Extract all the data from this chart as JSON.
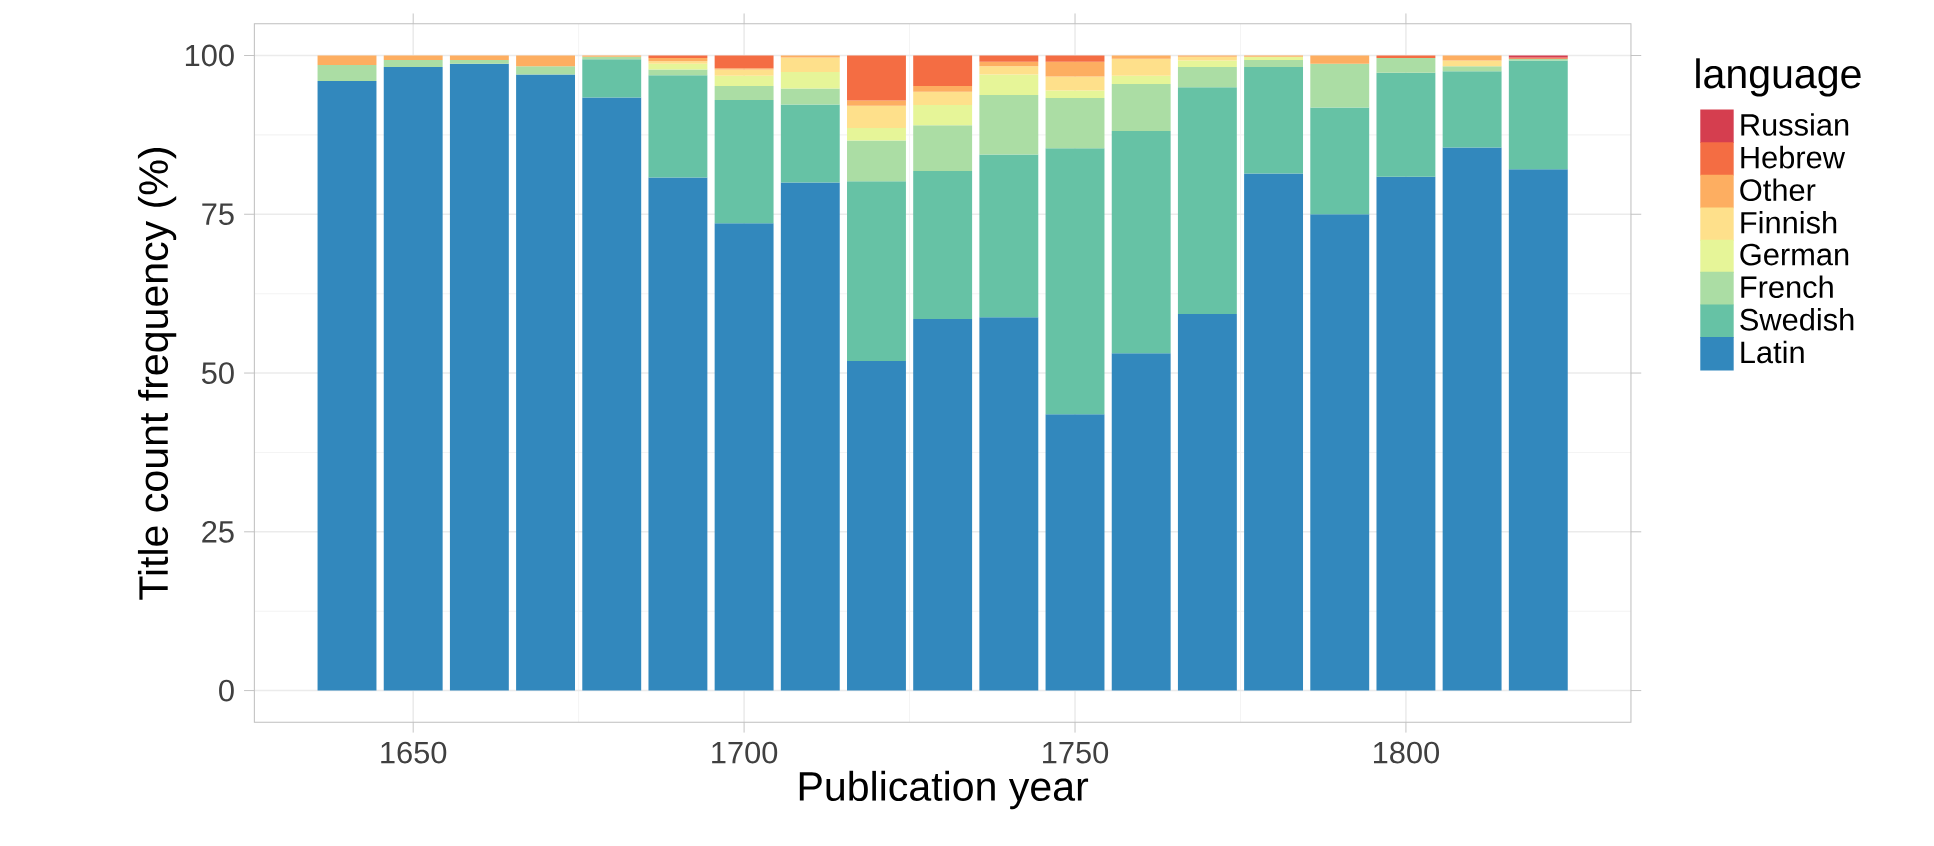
{
  "chart_data": {
    "type": "bar",
    "stacked": true,
    "xlabel": "Publication year",
    "ylabel": "Title count frequency (%)",
    "legend_title": "language",
    "legend": "right",
    "grid": true,
    "x": [
      1640,
      1650,
      1660,
      1670,
      1680,
      1690,
      1700,
      1710,
      1720,
      1730,
      1740,
      1750,
      1760,
      1770,
      1780,
      1790,
      1800,
      1810,
      1820
    ],
    "xlim": [
      1626,
      1834
    ],
    "ylim": [
      -5,
      105
    ],
    "xticks": [
      1650,
      1700,
      1750,
      1800
    ],
    "yticks": [
      0,
      25,
      50,
      75,
      100
    ],
    "series": [
      {
        "name": "Latin",
        "color": "#3288bd",
        "values": [
          96.0,
          98.2,
          98.7,
          97.0,
          93.4,
          80.8,
          73.6,
          80.0,
          51.9,
          58.5,
          58.8,
          43.5,
          53.1,
          59.3,
          81.4,
          75.0,
          80.9,
          85.5,
          82.1
        ]
      },
      {
        "name": "Swedish",
        "color": "#66c2a5",
        "values": [
          null,
          null,
          null,
          null,
          6.0,
          16.1,
          19.4,
          12.3,
          28.3,
          23.3,
          25.6,
          41.9,
          35.0,
          35.7,
          16.8,
          16.8,
          16.4,
          12.0,
          17.1
        ]
      },
      {
        "name": "French",
        "color": "#abdda4",
        "values": [
          2.5,
          1.1,
          0.6,
          1.3,
          0.4,
          0.9,
          2.2,
          2.5,
          6.4,
          7.2,
          9.4,
          7.9,
          7.4,
          3.2,
          1.1,
          6.9,
          2.3,
          0.8,
          0.3
        ]
      },
      {
        "name": "German",
        "color": "#e6f598",
        "values": [
          null,
          null,
          null,
          null,
          null,
          0.9,
          1.6,
          2.6,
          2.0,
          3.2,
          3.2,
          1.2,
          1.3,
          1.0,
          0.5,
          null,
          null,
          null,
          null
        ]
      },
      {
        "name": "Finnish",
        "color": "#fee08b",
        "values": [
          null,
          null,
          null,
          null,
          null,
          0.4,
          1.0,
          2.3,
          3.5,
          2.1,
          1.3,
          2.2,
          2.7,
          0.6,
          null,
          null,
          null,
          0.9,
          null
        ]
      },
      {
        "name": "Other",
        "color": "#fdae61",
        "values": [
          1.5,
          0.7,
          0.7,
          1.7,
          0.2,
          0.5,
          0.2,
          0.3,
          0.8,
          0.9,
          0.7,
          2.3,
          0.5,
          0.2,
          0.2,
          1.3,
          null,
          0.8,
          null
        ]
      },
      {
        "name": "Hebrew",
        "color": "#f46d43",
        "values": [
          null,
          null,
          null,
          null,
          null,
          0.4,
          2.0,
          null,
          7.1,
          4.8,
          1.0,
          1.0,
          null,
          null,
          null,
          null,
          0.4,
          null,
          0.2
        ]
      },
      {
        "name": "Russian",
        "color": "#d53e4f",
        "values": [
          null,
          null,
          null,
          null,
          null,
          null,
          null,
          null,
          null,
          null,
          null,
          null,
          null,
          null,
          null,
          null,
          null,
          null,
          0.3
        ]
      }
    ]
  }
}
